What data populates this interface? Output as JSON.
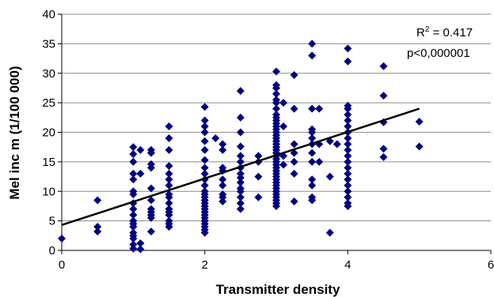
{
  "chart_data": {
    "type": "scatter",
    "title": "",
    "xlabel": "Transmitter density",
    "ylabel": "Mel inc m (1/100 000)",
    "xlim": [
      0,
      6
    ],
    "ylim": [
      0,
      40
    ],
    "x_ticks": [
      "0",
      "2",
      "4",
      "6"
    ],
    "y_ticks": [
      "0",
      "5",
      "10",
      "15",
      "20",
      "25",
      "30",
      "35",
      "40"
    ],
    "grid": "horizontal",
    "legend": "none",
    "marker": "diamond",
    "marker_color": "#000080",
    "trendline": {
      "type": "linear",
      "x": [
        0,
        5
      ],
      "y": [
        4.3,
        24.0
      ],
      "color": "#000000"
    },
    "annotations": {
      "r2_prefix": "R",
      "r2_exp": "2",
      "r2_value": " = 0.417",
      "p_value": "p<0,000001"
    },
    "points": [
      [
        0,
        2
      ],
      [
        0.5,
        8.5
      ],
      [
        0.5,
        4
      ],
      [
        0.5,
        3.2
      ],
      [
        1,
        17.5
      ],
      [
        1,
        16.3
      ],
      [
        1,
        15
      ],
      [
        1,
        13
      ],
      [
        1,
        12
      ],
      [
        1,
        10
      ],
      [
        1,
        9.5
      ],
      [
        1,
        8
      ],
      [
        1,
        7
      ],
      [
        1,
        6
      ],
      [
        1,
        5
      ],
      [
        1,
        4.5
      ],
      [
        1,
        4
      ],
      [
        1,
        3
      ],
      [
        1,
        2.5
      ],
      [
        1,
        2
      ],
      [
        1,
        1
      ],
      [
        1,
        0.3
      ],
      [
        1.1,
        17
      ],
      [
        1.1,
        13
      ],
      [
        1.1,
        1.2
      ],
      [
        1.1,
        0.2
      ],
      [
        1.25,
        17
      ],
      [
        1.25,
        16.5
      ],
      [
        1.25,
        14.6
      ],
      [
        1.25,
        14
      ],
      [
        1.25,
        10.5
      ],
      [
        1.25,
        8.5
      ],
      [
        1.25,
        7
      ],
      [
        1.25,
        6.5
      ],
      [
        1.25,
        6
      ],
      [
        1.25,
        5.5
      ],
      [
        1.25,
        3.2
      ],
      [
        1.5,
        21
      ],
      [
        1.5,
        19
      ],
      [
        1.5,
        17
      ],
      [
        1.5,
        14.3
      ],
      [
        1.5,
        13
      ],
      [
        1.5,
        12
      ],
      [
        1.5,
        11
      ],
      [
        1.5,
        9.5
      ],
      [
        1.5,
        9
      ],
      [
        1.5,
        8
      ],
      [
        1.5,
        7
      ],
      [
        1.5,
        6.5
      ],
      [
        1.5,
        6
      ],
      [
        1.5,
        5
      ],
      [
        1.5,
        4.5
      ],
      [
        1.5,
        4
      ],
      [
        2,
        24.3
      ],
      [
        2,
        22
      ],
      [
        2,
        21
      ],
      [
        2,
        20
      ],
      [
        2,
        18.5
      ],
      [
        2,
        17
      ],
      [
        2,
        15.3
      ],
      [
        2,
        14
      ],
      [
        2,
        13
      ],
      [
        2,
        12
      ],
      [
        2,
        11
      ],
      [
        2,
        10
      ],
      [
        2,
        9.5
      ],
      [
        2,
        9
      ],
      [
        2,
        8.5
      ],
      [
        2,
        8
      ],
      [
        2,
        7.5
      ],
      [
        2,
        7
      ],
      [
        2,
        6.5
      ],
      [
        2,
        6
      ],
      [
        2,
        5.5
      ],
      [
        2,
        5
      ],
      [
        2,
        4.5
      ],
      [
        2,
        4
      ],
      [
        2,
        3.5
      ],
      [
        2,
        3
      ],
      [
        2.15,
        19
      ],
      [
        2.25,
        18
      ],
      [
        2.25,
        17
      ],
      [
        2.25,
        14
      ],
      [
        2.25,
        13.5
      ],
      [
        2.25,
        12
      ],
      [
        2.25,
        11
      ],
      [
        2.25,
        9.5
      ],
      [
        2.25,
        9
      ],
      [
        2.25,
        8.3
      ],
      [
        2.5,
        27
      ],
      [
        2.5,
        22.5
      ],
      [
        2.5,
        20
      ],
      [
        2.5,
        17.6
      ],
      [
        2.5,
        16
      ],
      [
        2.5,
        15
      ],
      [
        2.5,
        14
      ],
      [
        2.5,
        13
      ],
      [
        2.5,
        12.3
      ],
      [
        2.5,
        11.5
      ],
      [
        2.5,
        10.5
      ],
      [
        2.5,
        10
      ],
      [
        2.5,
        9
      ],
      [
        2.5,
        8
      ],
      [
        2.5,
        7
      ],
      [
        2.75,
        16
      ],
      [
        2.75,
        15
      ],
      [
        2.75,
        12.5
      ],
      [
        2.75,
        9
      ],
      [
        3,
        30.3
      ],
      [
        3,
        28
      ],
      [
        3,
        27.5
      ],
      [
        3,
        26.5
      ],
      [
        3,
        25.5
      ],
      [
        3,
        25
      ],
      [
        3,
        24
      ],
      [
        3,
        23
      ],
      [
        3,
        22.5
      ],
      [
        3,
        22
      ],
      [
        3,
        21.5
      ],
      [
        3,
        21
      ],
      [
        3,
        20.5
      ],
      [
        3,
        20
      ],
      [
        3,
        19.5
      ],
      [
        3,
        19
      ],
      [
        3,
        18.5
      ],
      [
        3,
        18
      ],
      [
        3,
        17.5
      ],
      [
        3,
        17
      ],
      [
        3,
        16.5
      ],
      [
        3,
        16
      ],
      [
        3,
        15.5
      ],
      [
        3,
        15
      ],
      [
        3,
        14.5
      ],
      [
        3,
        14
      ],
      [
        3,
        13.5
      ],
      [
        3,
        13
      ],
      [
        3,
        12.5
      ],
      [
        3,
        12
      ],
      [
        3,
        11.5
      ],
      [
        3,
        11
      ],
      [
        3,
        10.5
      ],
      [
        3,
        10
      ],
      [
        3,
        9.5
      ],
      [
        3,
        9
      ],
      [
        3,
        8.5
      ],
      [
        3,
        8
      ],
      [
        3,
        7.5
      ],
      [
        3.1,
        25
      ],
      [
        3.1,
        21
      ],
      [
        3.1,
        16
      ],
      [
        3.1,
        14.5
      ],
      [
        3.25,
        29.7
      ],
      [
        3.25,
        24
      ],
      [
        3.25,
        18
      ],
      [
        3.25,
        16.5
      ],
      [
        3.25,
        15
      ],
      [
        3.25,
        13
      ],
      [
        3.25,
        8.3
      ],
      [
        3.5,
        35
      ],
      [
        3.5,
        33
      ],
      [
        3.5,
        24
      ],
      [
        3.5,
        20.5
      ],
      [
        3.5,
        20
      ],
      [
        3.5,
        19
      ],
      [
        3.5,
        18
      ],
      [
        3.5,
        16.5
      ],
      [
        3.5,
        15
      ],
      [
        3.5,
        12
      ],
      [
        3.5,
        11
      ],
      [
        3.5,
        9
      ],
      [
        3.5,
        8.5
      ],
      [
        3.6,
        24
      ],
      [
        3.6,
        18
      ],
      [
        3.6,
        15
      ],
      [
        3.75,
        18.5
      ],
      [
        3.75,
        12.5
      ],
      [
        3.75,
        3
      ],
      [
        3.85,
        18
      ],
      [
        4,
        34.2
      ],
      [
        4,
        32
      ],
      [
        4,
        24.5
      ],
      [
        4,
        24
      ],
      [
        4,
        23
      ],
      [
        4,
        22
      ],
      [
        4,
        21
      ],
      [
        4,
        20
      ],
      [
        4,
        19
      ],
      [
        4,
        18
      ],
      [
        4,
        17
      ],
      [
        4,
        16
      ],
      [
        4,
        15
      ],
      [
        4,
        14
      ],
      [
        4,
        13
      ],
      [
        4,
        12
      ],
      [
        4,
        11
      ],
      [
        4,
        10
      ],
      [
        4,
        9
      ],
      [
        4,
        8
      ],
      [
        4,
        7.5
      ],
      [
        4.5,
        31.2
      ],
      [
        4.5,
        26.2
      ],
      [
        4.5,
        21.7
      ],
      [
        4.5,
        17.2
      ],
      [
        4.5,
        15.8
      ],
      [
        5,
        21.8
      ],
      [
        5,
        17.6
      ]
    ]
  }
}
